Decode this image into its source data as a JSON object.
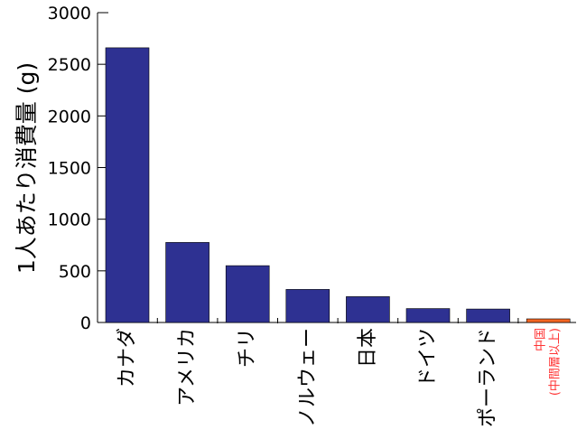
{
  "chart_data": {
    "type": "bar",
    "title": "",
    "xlabel": "",
    "ylabel": "1人あたり消費量 (g)",
    "ylim": [
      0,
      3000
    ],
    "yticks": [
      0,
      500,
      1000,
      1500,
      2000,
      2500,
      3000
    ],
    "categories": [
      "カナダ",
      "アメリカ",
      "チリ",
      "ノルウェー",
      "日本",
      "ドイツ",
      "ポーランド",
      "中国(中間層以上)"
    ],
    "category_lines": [
      [
        "カナダ"
      ],
      [
        "アメリカ"
      ],
      [
        "チリ"
      ],
      [
        "ノルウェー"
      ],
      [
        "日本"
      ],
      [
        "ドイツ"
      ],
      [
        "ポーランド"
      ],
      [
        "中国",
        "(中間層以上)"
      ]
    ],
    "values": [
      2660,
      775,
      550,
      320,
      250,
      135,
      130,
      35
    ],
    "highlight_index": 7,
    "colors": {
      "bar": "#2e3192",
      "highlight_bar": "#f26522",
      "highlight_label": "#ff3333",
      "axis": "#000000"
    },
    "grid": false,
    "legend": "none"
  }
}
